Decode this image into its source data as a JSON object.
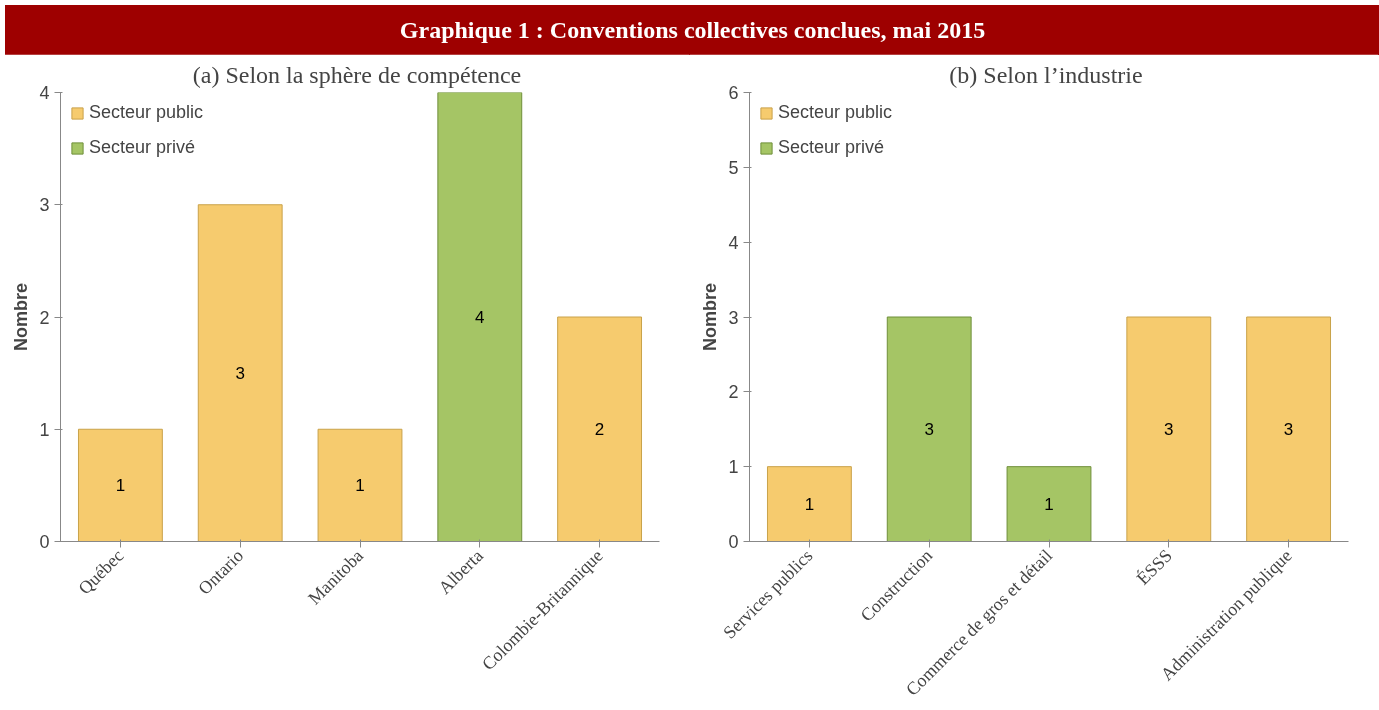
{
  "chart_data": [
    {
      "type": "bar",
      "title": "Graphique 1 : Conventions collectives conclues, mai 2015",
      "subtitle": "(a)  Selon la sphère de compétence",
      "ylabel": "Nombre",
      "categories": [
        "Québec",
        "Ontario",
        "Manitoba",
        "Alberta",
        "Colombie-Britannique"
      ],
      "stacked": true,
      "data_labels": true,
      "legend": "top left",
      "grid": false,
      "ylim": [
        0,
        4
      ],
      "yticks": [
        0,
        1,
        2,
        3,
        4
      ],
      "series": [
        {
          "name": "Secteur public",
          "color": "#f6cb6e",
          "values": [
            1,
            3,
            1,
            null,
            2
          ]
        },
        {
          "name": "Secteur privé",
          "color": "#a5c565",
          "values": [
            null,
            null,
            null,
            4,
            null
          ]
        }
      ]
    },
    {
      "type": "bar",
      "subtitle": "(b)  Selon l’industrie",
      "ylabel": "Nombre",
      "categories": [
        "Services publics",
        "Construction",
        "Commerce de gros et détail",
        "ÉSSS",
        "Administration publique"
      ],
      "stacked": true,
      "data_labels": true,
      "legend": "top left",
      "grid": false,
      "ylim": [
        0,
        6
      ],
      "yticks": [
        0,
        1,
        2,
        3,
        4,
        5,
        6
      ],
      "series": [
        {
          "name": "Secteur public",
          "color": "#f6cb6e",
          "values": [
            1,
            null,
            null,
            3,
            3
          ]
        },
        {
          "name": "Secteur privé",
          "color": "#a5c565",
          "values": [
            null,
            3,
            1,
            null,
            null
          ]
        }
      ]
    }
  ]
}
